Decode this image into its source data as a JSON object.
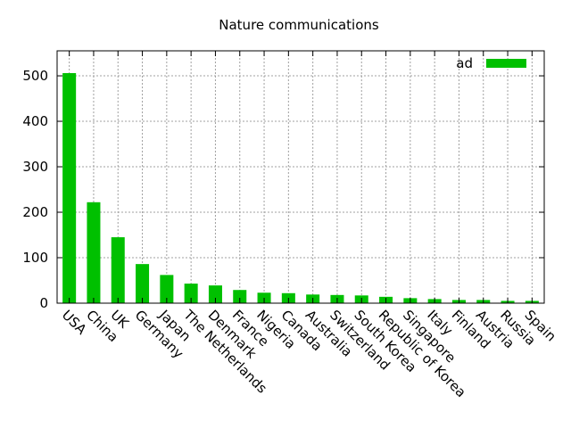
{
  "chart_data": {
    "type": "bar",
    "title": "Nature communications",
    "xlabel": "",
    "ylabel": "",
    "categories": [
      "USA",
      "China",
      "UK",
      "Germany",
      "Japan",
      "The Netherlands",
      "Denmark",
      "France",
      "Nigeria",
      "Canada",
      "Australia",
      "Switzerland",
      "South Korea",
      "Republic of Korea",
      "Singapore",
      "Italy",
      "Finland",
      "Austria",
      "Russia",
      "Spain"
    ],
    "series": [
      {
        "name": "ad",
        "values": [
          506,
          222,
          145,
          86,
          62,
          43,
          39,
          29,
          23,
          22,
          19,
          18,
          17,
          14,
          11,
          9,
          7,
          7,
          5,
          5
        ]
      }
    ],
    "ylim": [
      0,
      555
    ],
    "yticks": [
      0,
      100,
      200,
      300,
      400,
      500
    ],
    "grid": true,
    "legend_position": "top-right",
    "bar_color": "#00c000"
  }
}
